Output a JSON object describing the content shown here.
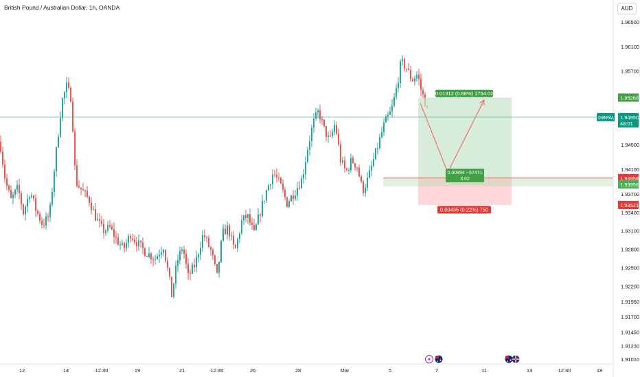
{
  "header": {
    "title": "British Pound / Australian Dollar, 1h, OANDA",
    "currency_button": "AUD"
  },
  "colors": {
    "up": "#26a69a",
    "down": "#ef5350",
    "target_zone": "#c8e6c9",
    "stop_zone": "#ffcdd2",
    "price_badge": "#089981",
    "profit_badge": "#43a047",
    "loss_badge": "#e53935",
    "axis_text": "#131722"
  },
  "chart_data": {
    "type": "candlestick",
    "symbol": "GBPAUD",
    "y_ticks": [
      1.965,
      1.961,
      1.957,
      1.9526,
      1.9495,
      1.945,
      1.941,
      1.937,
      1.934,
      1.931,
      1.928,
      1.925,
      1.922,
      1.9195,
      1.917,
      1.9145,
      1.9123,
      1.9101
    ],
    "y_tick_labels": [
      "1.96500",
      "1.96100",
      "1.95700",
      "1.95268",
      "1.94950",
      "1.94500",
      "1.94100",
      "1.93700",
      "1.93400",
      "1.93100",
      "1.92800",
      "1.92500",
      "1.92200",
      "1.91950",
      "1.91700",
      "1.91450",
      "1.91230",
      "1.91010"
    ],
    "x_tick_labels": [
      "12",
      "14",
      "12:30",
      "19",
      "21",
      "12:30",
      "26",
      "28",
      "Mar",
      "5",
      "7",
      "11",
      "13",
      "12:30",
      "18"
    ],
    "price_path": [
      [
        0,
        1.9455
      ],
      [
        8,
        1.939
      ],
      [
        16,
        1.936
      ],
      [
        26,
        1.938
      ],
      [
        34,
        1.934
      ],
      [
        44,
        1.9375
      ],
      [
        52,
        1.9345
      ],
      [
        62,
        1.932
      ],
      [
        72,
        1.9335
      ],
      [
        80,
        1.942
      ],
      [
        86,
        1.948
      ],
      [
        90,
        1.952
      ],
      [
        97,
        1.9545
      ],
      [
        104,
        1.9525
      ],
      [
        110,
        1.939
      ],
      [
        120,
        1.9375
      ],
      [
        130,
        1.936
      ],
      [
        140,
        1.933
      ],
      [
        150,
        1.931
      ],
      [
        160,
        1.9315
      ],
      [
        170,
        1.9295
      ],
      [
        180,
        1.928
      ],
      [
        190,
        1.9305
      ],
      [
        200,
        1.929
      ],
      [
        212,
        1.9275
      ],
      [
        226,
        1.9265
      ],
      [
        238,
        1.9285
      ],
      [
        246,
        1.9235
      ],
      [
        250,
        1.9205
      ],
      [
        258,
        1.926
      ],
      [
        266,
        1.9285
      ],
      [
        274,
        1.9235
      ],
      [
        284,
        1.9255
      ],
      [
        296,
        1.9305
      ],
      [
        308,
        1.9275
      ],
      [
        316,
        1.9235
      ],
      [
        324,
        1.9305
      ],
      [
        332,
        1.9315
      ],
      [
        342,
        1.9275
      ],
      [
        352,
        1.9325
      ],
      [
        360,
        1.9335
      ],
      [
        370,
        1.9305
      ],
      [
        380,
        1.9345
      ],
      [
        388,
        1.9375
      ],
      [
        398,
        1.9405
      ],
      [
        408,
        1.9385
      ],
      [
        418,
        1.9355
      ],
      [
        430,
        1.9375
      ],
      [
        440,
        1.9395
      ],
      [
        448,
        1.9445
      ],
      [
        456,
        1.9485
      ],
      [
        464,
        1.9505
      ],
      [
        472,
        1.9475
      ],
      [
        480,
        1.9455
      ],
      [
        488,
        1.9485
      ],
      [
        496,
        1.9425
      ],
      [
        504,
        1.9405
      ],
      [
        512,
        1.9425
      ],
      [
        520,
        1.9415
      ],
      [
        528,
        1.9375
      ],
      [
        536,
        1.9395
      ],
      [
        544,
        1.9425
      ],
      [
        552,
        1.9455
      ],
      [
        560,
        1.9485
      ],
      [
        570,
        1.9505
      ],
      [
        578,
        1.9545
      ],
      [
        584,
        1.9585
      ],
      [
        592,
        1.9575
      ],
      [
        600,
        1.9555
      ],
      [
        608,
        1.9565
      ],
      [
        614,
        1.9535
      ],
      [
        618,
        1.9525
      ],
      [
        624,
        1.9495
      ]
    ],
    "last_price": {
      "symbol": "GBPAUD",
      "price_label": "1.94950",
      "countdown": "48:01",
      "value": 1.9495
    },
    "horizontal_line": {
      "value": 1.93958,
      "label": "1.93958"
    },
    "position": {
      "entry": {
        "value": 1.93956,
        "label": "1.93956"
      },
      "target": {
        "value": 1.95268,
        "label": "1.95268",
        "text": "0.01312 (0.68%) 1754.02"
      },
      "stop": {
        "value": 1.93521,
        "label": "1.93521",
        "text": "0.00435 (0.22%) 750"
      },
      "info": {
        "line1": "0.00994 - 57471",
        "line2": "3.02"
      },
      "zone": {
        "start_bar": 609,
        "end_bar": 745
      },
      "projection": [
        [
          612,
          1.9518
        ],
        [
          652,
          1.9405
        ],
        [
          705,
          1.9523
        ]
      ]
    },
    "events": [
      "lightning-event-icon",
      "australia-flag-icon",
      "australia-flag-icon",
      "uk-flag-icon"
    ]
  }
}
